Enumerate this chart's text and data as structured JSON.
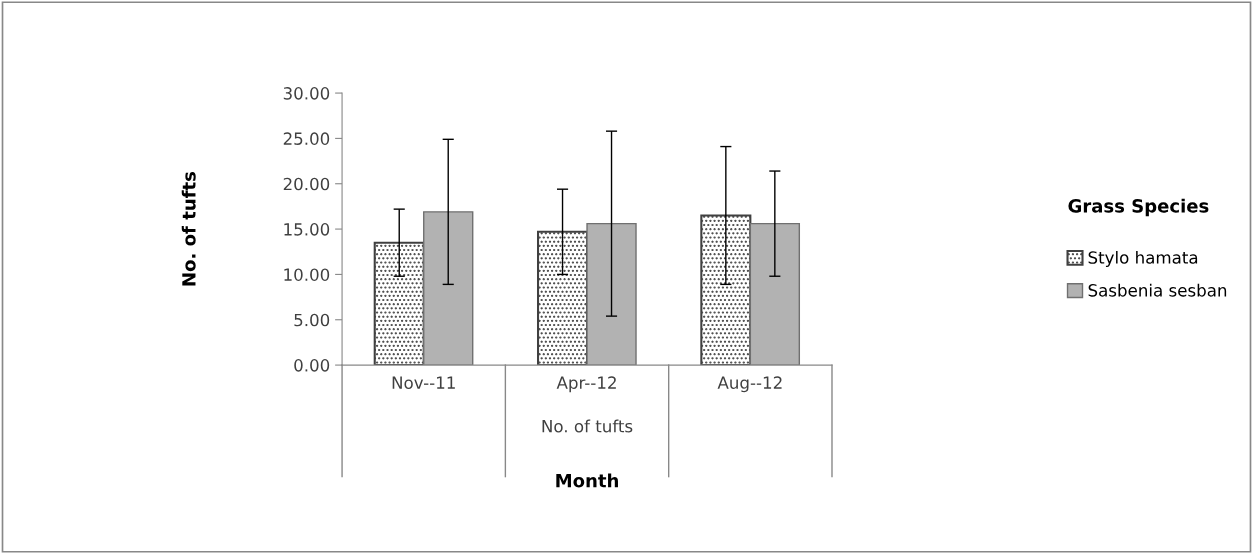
{
  "chart_data": {
    "type": "bar",
    "xlabel": "Month",
    "ylabel": "No. of tufts",
    "legend_title": "Grass Species",
    "categories": [
      "Nov--11",
      "Apr--12",
      "Aug--12"
    ],
    "series": [
      {
        "name": "Stylo hamata",
        "color": "#404040",
        "values": [
          13.5,
          14.7,
          16.5
        ],
        "errors": [
          3.7,
          4.7,
          7.6
        ]
      },
      {
        "name": "Sasbenia sesban",
        "color": "#b2b2b2",
        "values": [
          16.9,
          15.6,
          15.6
        ],
        "errors": [
          8.0,
          10.2,
          5.8
        ]
      }
    ],
    "annotations": [
      "No. of tufts"
    ],
    "ylim": [
      0,
      30
    ],
    "yticks": [
      {
        "value": 0,
        "label": "0.00"
      },
      {
        "value": 5,
        "label": "5.00"
      },
      {
        "value": 10,
        "label": "10.00"
      },
      {
        "value": 15,
        "label": "15.00"
      },
      {
        "value": 20,
        "label": "20.00"
      },
      {
        "value": 25,
        "label": "25.00"
      },
      {
        "value": 30,
        "label": "30.00"
      }
    ],
    "grid": false,
    "legend": "right"
  }
}
